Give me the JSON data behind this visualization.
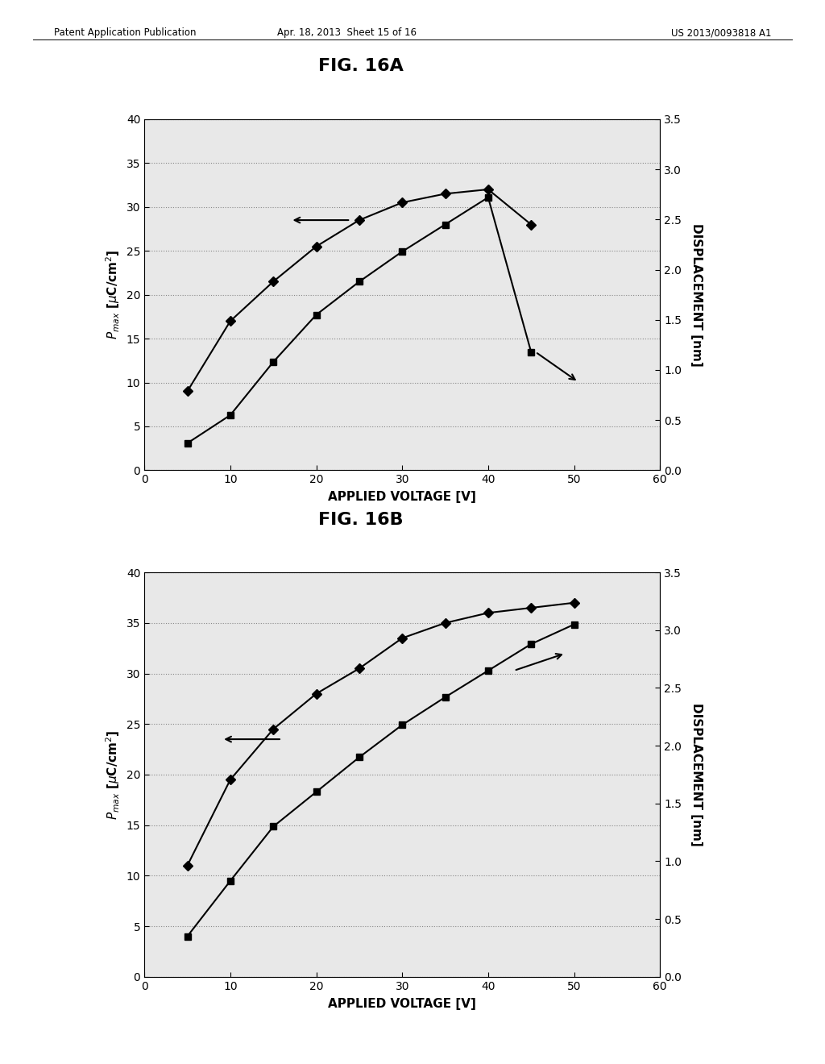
{
  "fig_a_title": "FIG. 16A",
  "fig_b_title": "FIG. 16B",
  "header_left": "Patent Application Publication",
  "header_mid": "Apr. 18, 2013  Sheet 15 of 16",
  "header_right": "US 2013/0093818 A1",
  "fig_a": {
    "diamond_x": [
      5,
      10,
      15,
      20,
      25,
      30,
      35,
      40,
      45
    ],
    "diamond_y": [
      9.0,
      17.0,
      21.5,
      25.5,
      28.5,
      30.5,
      31.5,
      32.0,
      28.0
    ],
    "square_x": [
      5,
      10,
      15,
      20,
      25,
      30,
      35,
      40,
      45
    ],
    "square_y_disp": [
      0.27,
      0.55,
      1.08,
      1.55,
      1.88,
      2.18,
      2.45,
      2.72,
      1.18
    ],
    "xlim": [
      0,
      60
    ],
    "ylim_left": [
      0,
      40
    ],
    "ylim_right": [
      0.0,
      3.5
    ],
    "xlabel": "APPLIED VOLTAGE [V]",
    "xticks": [
      0,
      10,
      20,
      30,
      40,
      50,
      60
    ],
    "yticks_left": [
      0,
      5,
      10,
      15,
      20,
      25,
      30,
      35,
      40
    ],
    "yticks_right": [
      0.0,
      0.5,
      1.0,
      1.5,
      2.0,
      2.5,
      3.0,
      3.5
    ],
    "left_ann_tail_x": 24,
    "left_ann_tail_y": 28.5,
    "left_ann_head_x": 17,
    "left_ann_head_y": 28.5,
    "right_ann_tail_x": 45.5,
    "right_ann_tail_y_disp": 1.18,
    "right_ann_head_x": 50.5,
    "right_ann_head_y_disp": 0.88
  },
  "fig_b": {
    "diamond_x": [
      5,
      10,
      15,
      20,
      25,
      30,
      35,
      40,
      45,
      50
    ],
    "diamond_y": [
      11.0,
      19.5,
      24.5,
      28.0,
      30.5,
      33.5,
      35.0,
      36.0,
      36.5,
      37.0
    ],
    "square_x": [
      5,
      10,
      15,
      20,
      25,
      30,
      35,
      40,
      45,
      50
    ],
    "square_y_disp": [
      0.35,
      0.83,
      1.3,
      1.6,
      1.9,
      2.18,
      2.42,
      2.65,
      2.88,
      3.05
    ],
    "xlim": [
      0,
      60
    ],
    "ylim_left": [
      0,
      40
    ],
    "ylim_right": [
      0.0,
      3.5
    ],
    "xlabel": "APPLIED VOLTAGE [V]",
    "xticks": [
      0,
      10,
      20,
      30,
      40,
      50,
      60
    ],
    "yticks_left": [
      0,
      5,
      10,
      15,
      20,
      25,
      30,
      35,
      40
    ],
    "yticks_right": [
      0.0,
      0.5,
      1.0,
      1.5,
      2.0,
      2.5,
      3.0,
      3.5
    ],
    "left_ann_tail_x": 16,
    "left_ann_tail_y": 23.5,
    "left_ann_head_x": 9,
    "left_ann_head_y": 23.5,
    "right_ann_tail_x": 43,
    "right_ann_tail_y_disp": 2.65,
    "right_ann_head_x": 49,
    "right_ann_head_y_disp": 2.8
  },
  "bg_color": "#ffffff",
  "plot_bg": "#e8e8e8"
}
